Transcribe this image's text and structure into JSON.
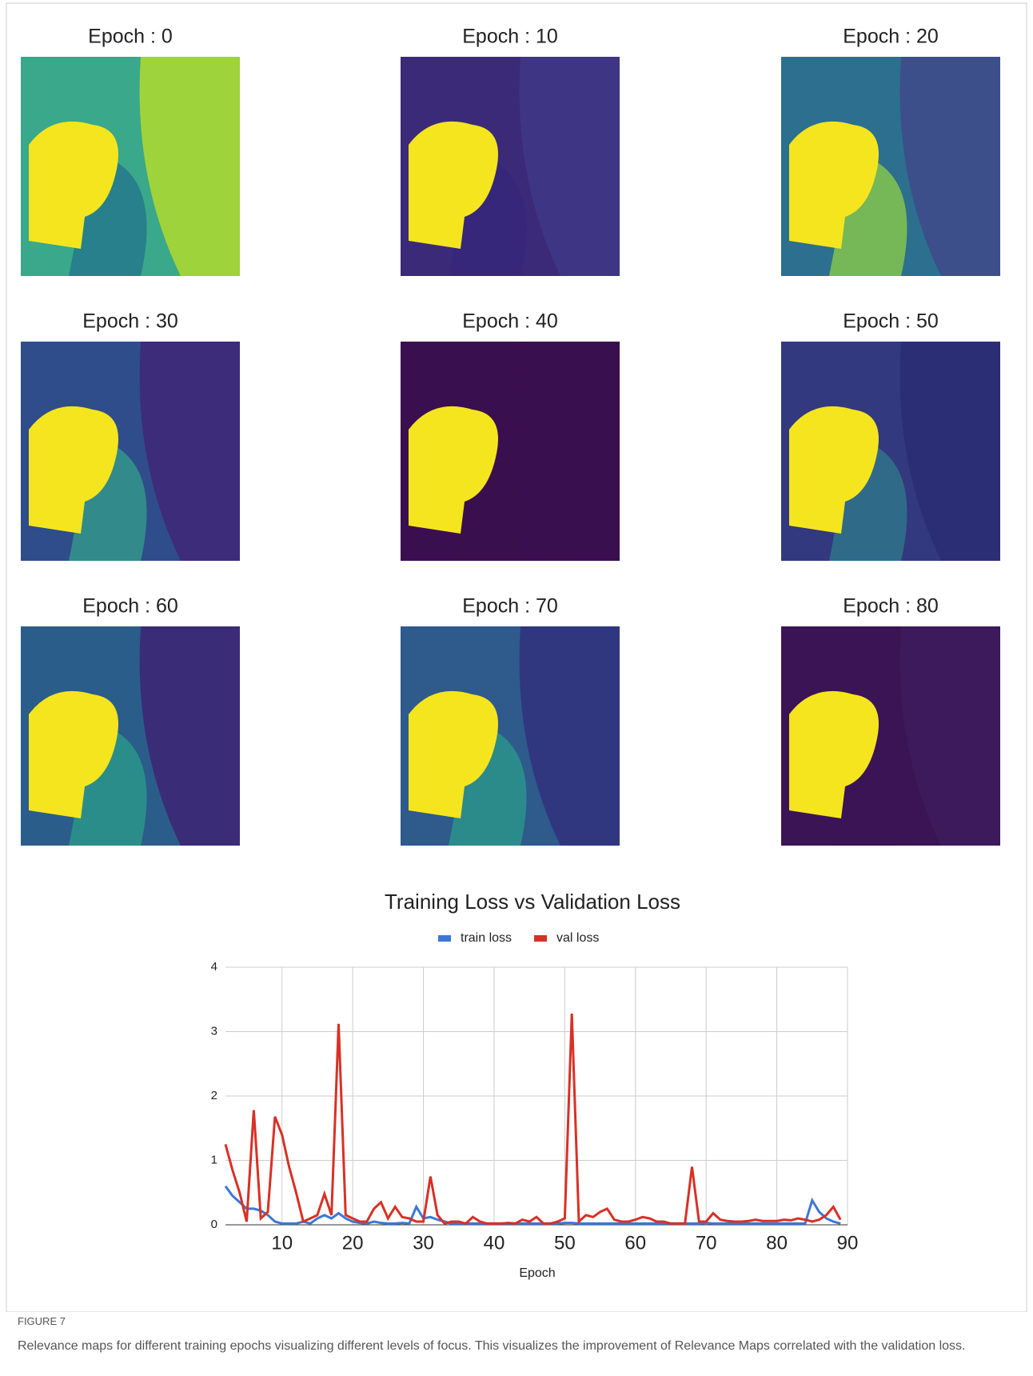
{
  "panels": [
    {
      "title": "Epoch  : 0"
    },
    {
      "title": "Epoch  : 10"
    },
    {
      "title": "Epoch  : 20"
    },
    {
      "title": "Epoch  : 30"
    },
    {
      "title": "Epoch  : 40"
    },
    {
      "title": "Epoch  : 50"
    },
    {
      "title": "Epoch  : 60"
    },
    {
      "title": "Epoch  : 70"
    },
    {
      "title": "Epoch  : 80"
    }
  ],
  "chart_data": {
    "type": "line",
    "title": "Training Loss vs Validation Loss",
    "x_label": "Epoch",
    "x": [
      2,
      3,
      4,
      5,
      6,
      7,
      8,
      9,
      10,
      11,
      12,
      13,
      14,
      15,
      16,
      17,
      18,
      19,
      20,
      21,
      22,
      23,
      24,
      25,
      26,
      27,
      28,
      29,
      30,
      31,
      32,
      33,
      34,
      35,
      36,
      37,
      38,
      39,
      40,
      41,
      42,
      43,
      44,
      45,
      46,
      47,
      48,
      49,
      50,
      51,
      52,
      53,
      54,
      55,
      56,
      57,
      58,
      59,
      60,
      61,
      62,
      63,
      64,
      65,
      66,
      67,
      68,
      69,
      70,
      71,
      72,
      73,
      74,
      75,
      76,
      77,
      78,
      79,
      80,
      81,
      82,
      83,
      84,
      85,
      86,
      87,
      88,
      89
    ],
    "series": [
      {
        "name": "train loss",
        "color": "#3b78d8",
        "values": [
          0.6,
          0.45,
          0.35,
          0.25,
          0.25,
          0.22,
          0.15,
          0.05,
          0.02,
          0.02,
          0.02,
          0.05,
          0.02,
          0.1,
          0.15,
          0.1,
          0.18,
          0.1,
          0.05,
          0.03,
          0.02,
          0.05,
          0.03,
          0.02,
          0.02,
          0.03,
          0.02,
          0.28,
          0.1,
          0.12,
          0.08,
          0.05,
          0.02,
          0.02,
          0.02,
          0.02,
          0.02,
          0.02,
          0.02,
          0.02,
          0.02,
          0.02,
          0.02,
          0.02,
          0.02,
          0.02,
          0.02,
          0.02,
          0.03,
          0.03,
          0.02,
          0.02,
          0.02,
          0.02,
          0.02,
          0.02,
          0.02,
          0.02,
          0.02,
          0.02,
          0.02,
          0.02,
          0.02,
          0.02,
          0.02,
          0.02,
          0.02,
          0.02,
          0.03,
          0.02,
          0.02,
          0.02,
          0.02,
          0.02,
          0.02,
          0.02,
          0.02,
          0.02,
          0.02,
          0.02,
          0.02,
          0.02,
          0.02,
          0.38,
          0.2,
          0.1,
          0.05,
          0.02
        ]
      },
      {
        "name": "val loss",
        "color": "#d93025",
        "values": [
          1.25,
          0.85,
          0.5,
          0.05,
          1.78,
          0.1,
          0.2,
          1.68,
          1.4,
          0.9,
          0.5,
          0.05,
          0.1,
          0.15,
          0.48,
          0.15,
          3.12,
          0.15,
          0.1,
          0.05,
          0.05,
          0.25,
          0.35,
          0.1,
          0.28,
          0.12,
          0.1,
          0.05,
          0.05,
          0.75,
          0.15,
          0.02,
          0.05,
          0.05,
          0.02,
          0.12,
          0.05,
          0.02,
          0.02,
          0.02,
          0.03,
          0.02,
          0.08,
          0.05,
          0.12,
          0.02,
          0.02,
          0.05,
          0.1,
          3.28,
          0.05,
          0.15,
          0.12,
          0.2,
          0.25,
          0.08,
          0.05,
          0.05,
          0.08,
          0.12,
          0.1,
          0.05,
          0.05,
          0.02,
          0.02,
          0.02,
          0.9,
          0.05,
          0.05,
          0.18,
          0.08,
          0.06,
          0.05,
          0.05,
          0.06,
          0.08,
          0.06,
          0.06,
          0.06,
          0.08,
          0.07,
          0.1,
          0.08,
          0.05,
          0.08,
          0.15,
          0.28,
          0.08
        ]
      }
    ],
    "xlim": [
      2,
      90
    ],
    "ylim": [
      0,
      4
    ],
    "xticks": [
      10,
      20,
      30,
      40,
      50,
      60,
      70,
      80,
      90
    ],
    "yticks": [
      0,
      1,
      2,
      3,
      4
    ],
    "grid": true,
    "legend": "top"
  },
  "figure_label": "FIGURE 7",
  "caption": "Relevance maps for different training epochs visualizing different levels of focus. This visualizes the improvement of Relevance Maps correlated with the validation loss."
}
